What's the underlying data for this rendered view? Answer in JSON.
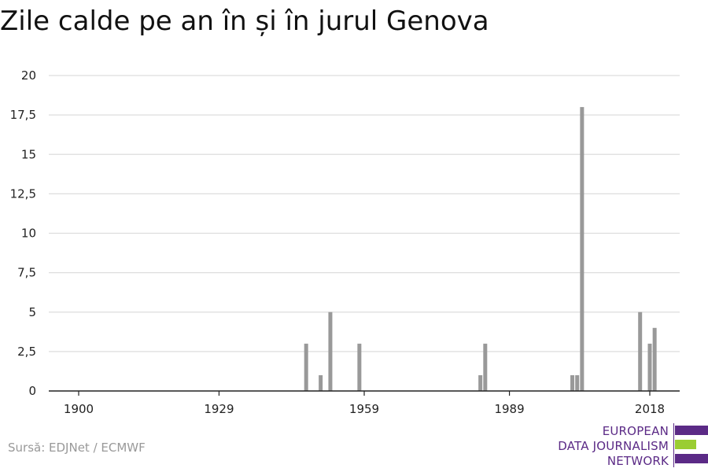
{
  "title": "Zile calde pe an în și în jurul Genova",
  "source": "Sursă: EDJNet / ECMWF",
  "logo": {
    "lines": [
      "EUROPEAN",
      "DATA JOURNALISM",
      "NETWORK"
    ],
    "colors": {
      "purple": "#5b2a86",
      "green": "#9acd32"
    }
  },
  "chart_data": {
    "type": "bar",
    "title": "Zile calde pe an în și în jurul Genova",
    "xlabel": "",
    "ylabel": "",
    "ylim": [
      0,
      20
    ],
    "xlim": [
      1900,
      2018
    ],
    "grid": true,
    "bar_color": "#999999",
    "x_ticks": [
      1900,
      1929,
      1959,
      1989,
      2018
    ],
    "y_ticks": [
      {
        "value": 0,
        "label": "0"
      },
      {
        "value": 2.5,
        "label": "2,5"
      },
      {
        "value": 5,
        "label": "5"
      },
      {
        "value": 7.5,
        "label": "7,5"
      },
      {
        "value": 10,
        "label": "10"
      },
      {
        "value": 12.5,
        "label": "12,5"
      },
      {
        "value": 15,
        "label": "15"
      },
      {
        "value": 17.5,
        "label": "17,5"
      },
      {
        "value": 20,
        "label": "20"
      }
    ],
    "x": [
      1947,
      1950,
      1952,
      1958,
      1983,
      1984,
      2002,
      2003,
      2004,
      2016,
      2018,
      2019
    ],
    "values": [
      3,
      1,
      5,
      3,
      1,
      3,
      1,
      1,
      18,
      5,
      3,
      4
    ]
  }
}
